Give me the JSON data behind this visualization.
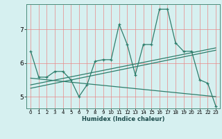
{
  "xlabel": "Humidex (Indice chaleur)",
  "bg_color": "#d6f0f0",
  "grid_color_v": "#e88888",
  "grid_color_h": "#e88888",
  "line_color": "#2d7d6b",
  "xlim": [
    -0.5,
    23.5
  ],
  "ylim": [
    4.65,
    7.75
  ],
  "xticks": [
    0,
    1,
    2,
    3,
    4,
    5,
    6,
    7,
    8,
    9,
    10,
    11,
    12,
    13,
    14,
    15,
    16,
    17,
    18,
    19,
    20,
    21,
    22,
    23
  ],
  "yticks": [
    5,
    6,
    7
  ],
  "main_x": [
    0,
    1,
    2,
    3,
    4,
    5,
    6,
    7,
    8,
    9,
    10,
    11,
    12,
    13,
    14,
    15,
    16,
    17,
    18,
    19,
    20,
    21,
    22,
    23
  ],
  "main_y": [
    6.35,
    5.58,
    5.58,
    5.75,
    5.75,
    5.5,
    5.0,
    5.35,
    6.05,
    6.1,
    6.1,
    7.15,
    6.55,
    5.65,
    6.55,
    6.55,
    7.6,
    7.6,
    6.6,
    6.35,
    6.35,
    5.5,
    5.4,
    4.72
  ],
  "line2_x": [
    0,
    23
  ],
  "line2_y": [
    5.55,
    5.0
  ],
  "line3_x": [
    0,
    23
  ],
  "line3_y": [
    5.35,
    6.45
  ],
  "line4_x": [
    0,
    23
  ],
  "line4_y": [
    5.25,
    6.38
  ]
}
